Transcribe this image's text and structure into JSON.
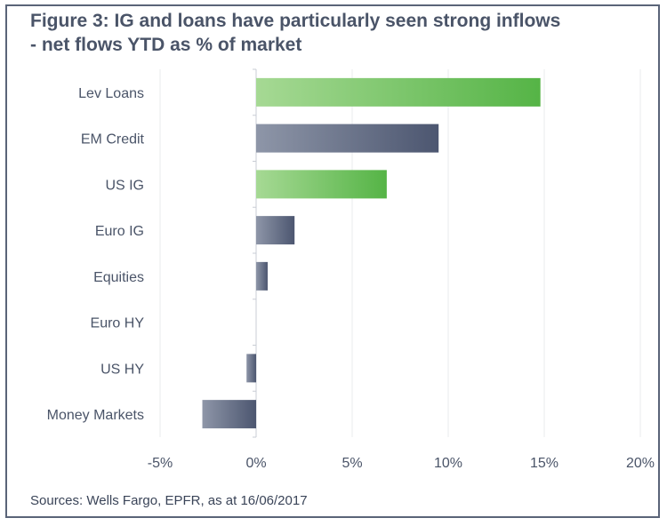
{
  "title": "Figure 3: IG and loans have particularly seen strong inflows - net flows YTD as % of market",
  "source": "Sources: Wells Fargo, EPFR, as at 16/06/2017",
  "colors": {
    "frame": "#5a6478",
    "green_light": "#a6d994",
    "green_dark": "#55b446",
    "slate_light": "#8e96a8",
    "slate_dark": "#4c5670",
    "grid": "#e9ebee",
    "axis": "#c8ccd4"
  },
  "chart_data": {
    "type": "bar",
    "orientation": "horizontal",
    "categories": [
      "Lev Loans",
      "EM Credit",
      "US IG",
      "Euro IG",
      "Equities",
      "Euro HY",
      "US HY",
      "Money Markets"
    ],
    "values": [
      14.8,
      9.5,
      6.8,
      2.0,
      0.6,
      0.0,
      -0.5,
      -2.8
    ],
    "bar_colors": [
      "green",
      "slate",
      "green",
      "slate",
      "slate",
      "slate",
      "slate",
      "slate"
    ],
    "xlim": [
      -5,
      20
    ],
    "xticks": [
      -5,
      0,
      5,
      10,
      15,
      20
    ],
    "xtick_labels": [
      "-5%",
      "0%",
      "5%",
      "10%",
      "15%",
      "20%"
    ],
    "grid": "vertical",
    "legend": "none"
  }
}
